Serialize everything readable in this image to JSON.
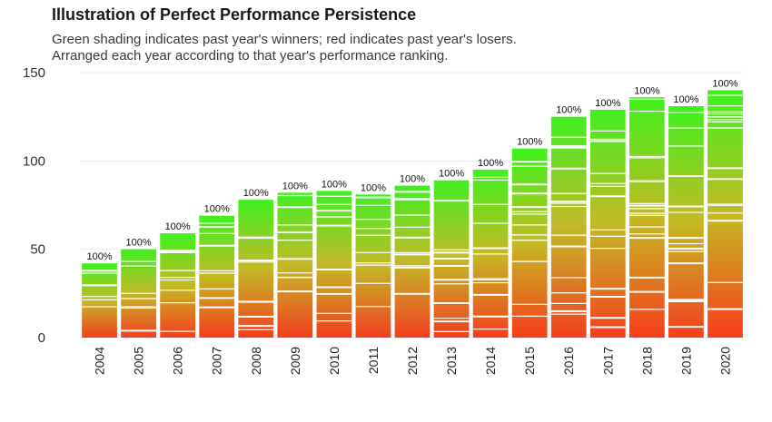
{
  "chart_data": {
    "type": "bar",
    "title": "Illustration of Perfect Performance Persistence",
    "subtitle": [
      "Green shading indicates past year's winners; red indicates past year's losers.",
      "Arranged each year according to that year's performance ranking."
    ],
    "xlabel": "",
    "ylabel": "",
    "ylim": [
      0,
      150
    ],
    "yticks": [
      0,
      50,
      100,
      150
    ],
    "grid": true,
    "legend": "none",
    "colors": {
      "low": "#f53a1a",
      "mid": "#c3b820",
      "high": "#3cf01c"
    },
    "categories": [
      "2004",
      "2005",
      "2006",
      "2007",
      "2008",
      "2009",
      "2010",
      "2011",
      "2012",
      "2013",
      "2014",
      "2015",
      "2016",
      "2017",
      "2018",
      "2019",
      "2020"
    ],
    "values": [
      42,
      50,
      59,
      69,
      78,
      82,
      83,
      81,
      86,
      89,
      95,
      107,
      125,
      129,
      136,
      131,
      140
    ],
    "data_labels": [
      "100%",
      "100%",
      "100%",
      "100%",
      "100%",
      "100%",
      "100%",
      "100%",
      "100%",
      "100%",
      "100%",
      "100%",
      "100%",
      "100%",
      "100%",
      "100%",
      "100%"
    ]
  }
}
